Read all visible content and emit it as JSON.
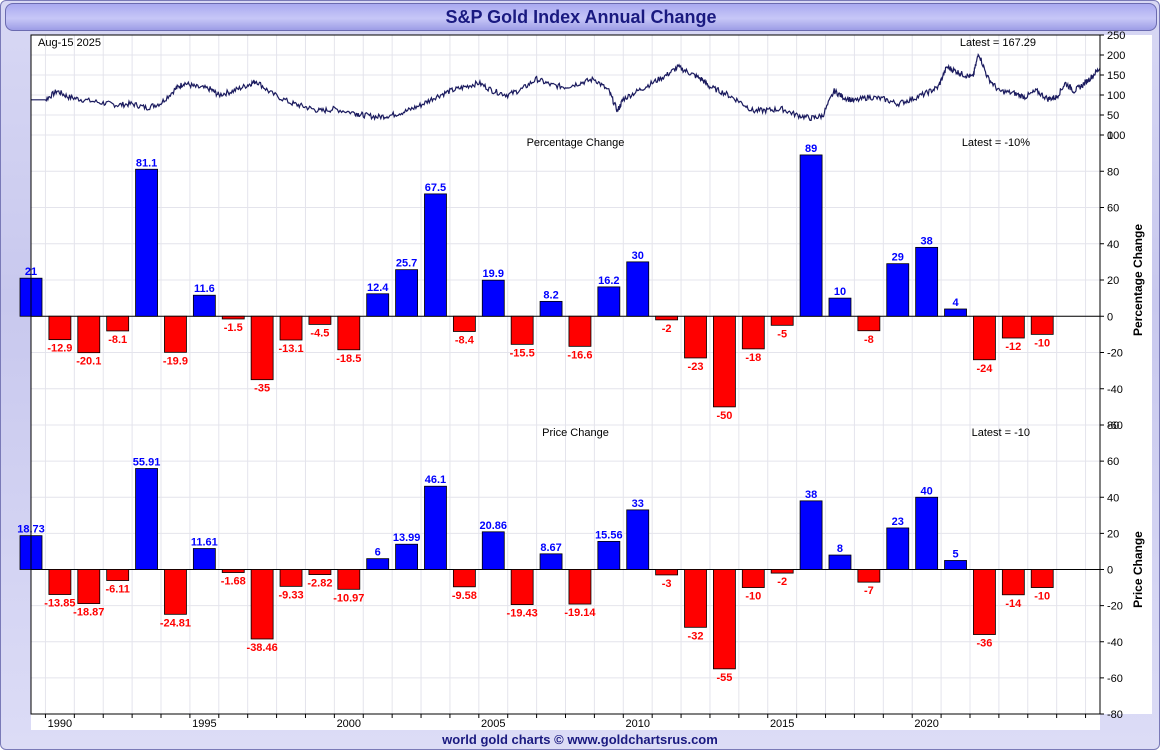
{
  "title": "S&P Gold Index Annual Change",
  "footer": "world gold charts © www.goldchartsrus.com",
  "colors": {
    "positive": "#0000ff",
    "negative": "#ff0000",
    "line": "#1a1a5e",
    "title_text": "#1a1a80"
  },
  "chart_data": [
    {
      "type": "line",
      "date_label": "Aug-15  2025",
      "latest_label": "Latest = 167.29",
      "ylim": [
        0,
        250
      ],
      "yticks": [
        "0",
        "50",
        "100",
        "150",
        "200",
        "250"
      ],
      "points": [
        [
          1988.5,
          88
        ],
        [
          1989.0,
          88
        ],
        [
          1989.4,
          110
        ],
        [
          1989.8,
          95
        ],
        [
          1990.3,
          88
        ],
        [
          1991.0,
          80
        ],
        [
          1991.5,
          75
        ],
        [
          1992.0,
          78
        ],
        [
          1992.5,
          68
        ],
        [
          1993.0,
          80
        ],
        [
          1993.5,
          115
        ],
        [
          1993.8,
          130
        ],
        [
          1994.2,
          120
        ],
        [
          1994.7,
          115
        ],
        [
          1995.0,
          100
        ],
        [
          1995.5,
          110
        ],
        [
          1996.0,
          125
        ],
        [
          1996.3,
          135
        ],
        [
          1996.8,
          105
        ],
        [
          1997.5,
          80
        ],
        [
          1998.0,
          70
        ],
        [
          1998.5,
          60
        ],
        [
          1999.0,
          65
        ],
        [
          1999.7,
          55
        ],
        [
          2000.0,
          50
        ],
        [
          2000.5,
          45
        ],
        [
          2001.0,
          50
        ],
        [
          2001.5,
          60
        ],
        [
          2002.0,
          75
        ],
        [
          2002.5,
          95
        ],
        [
          2003.0,
          110
        ],
        [
          2003.5,
          120
        ],
        [
          2004.0,
          130
        ],
        [
          2004.5,
          110
        ],
        [
          2005.0,
          100
        ],
        [
          2005.5,
          115
        ],
        [
          2006.0,
          140
        ],
        [
          2006.5,
          125
        ],
        [
          2007.0,
          120
        ],
        [
          2007.5,
          130
        ],
        [
          2008.0,
          140
        ],
        [
          2008.5,
          110
        ],
        [
          2008.8,
          60
        ],
        [
          2009.0,
          90
        ],
        [
          2009.5,
          110
        ],
        [
          2010.0,
          130
        ],
        [
          2010.5,
          150
        ],
        [
          2010.9,
          170
        ],
        [
          2011.3,
          155
        ],
        [
          2011.7,
          140
        ],
        [
          2012.0,
          120
        ],
        [
          2012.5,
          105
        ],
        [
          2013.0,
          85
        ],
        [
          2013.5,
          60
        ],
        [
          2014.0,
          62
        ],
        [
          2014.5,
          65
        ],
        [
          2015.0,
          50
        ],
        [
          2015.5,
          42
        ],
        [
          2015.9,
          48
        ],
        [
          2016.3,
          110
        ],
        [
          2016.6,
          95
        ],
        [
          2017.0,
          85
        ],
        [
          2017.5,
          95
        ],
        [
          2018.0,
          90
        ],
        [
          2018.5,
          78
        ],
        [
          2019.0,
          90
        ],
        [
          2019.5,
          105
        ],
        [
          2019.9,
          120
        ],
        [
          2020.2,
          170
        ],
        [
          2020.5,
          160
        ],
        [
          2020.8,
          150
        ],
        [
          2021.1,
          145
        ],
        [
          2021.3,
          205
        ],
        [
          2021.6,
          145
        ],
        [
          2022.0,
          110
        ],
        [
          2022.5,
          105
        ],
        [
          2022.9,
          95
        ],
        [
          2023.3,
          110
        ],
        [
          2023.7,
          90
        ],
        [
          2024.0,
          95
        ],
        [
          2024.3,
          130
        ],
        [
          2024.6,
          110
        ],
        [
          2024.9,
          125
        ],
        [
          2025.2,
          145
        ],
        [
          2025.5,
          167.29
        ]
      ]
    },
    {
      "type": "bar",
      "subtitle": "Percentage Change",
      "latest_label": "Latest = -10%",
      "ylabel": "Percentage Change",
      "ylim": [
        -60,
        100
      ],
      "yticks": [
        "-60",
        "-40",
        "-20",
        "0",
        "20",
        "40",
        "60",
        "80",
        "100"
      ],
      "categories": [
        1989,
        1990,
        1991,
        1992,
        1993,
        1994,
        1995,
        1996,
        1997,
        1998,
        1999,
        2000,
        2001,
        2002,
        2003,
        2004,
        2005,
        2006,
        2007,
        2008,
        2009,
        2010,
        2011,
        2012,
        2013,
        2014,
        2015,
        2016,
        2017,
        2018,
        2019,
        2020,
        2021,
        2022,
        2023,
        2024
      ],
      "values": [
        21,
        -12.9,
        -20.1,
        -8.1,
        81.1,
        -19.9,
        11.6,
        -1.5,
        -35,
        -13.1,
        -4.5,
        -18.5,
        12.4,
        25.7,
        67.5,
        -8.4,
        19.9,
        -15.5,
        8.2,
        -16.6,
        16.2,
        30,
        -2,
        -23,
        -50,
        -18,
        -5,
        89,
        10,
        -8,
        29,
        38,
        4,
        -24,
        -12,
        -10
      ],
      "labels": [
        "21",
        "-12.9",
        "-20.1",
        "-8.1",
        "81.1",
        "-19.9",
        "11.6",
        "-1.5",
        "-35",
        "-13.1",
        "-4.5",
        "-18.5",
        "12.4",
        "25.7",
        "67.5",
        "-8.4",
        "19.9",
        "-15.5",
        "8.2",
        "-16.6",
        "16.2",
        "30",
        "-2",
        "-23",
        "-50",
        "-18",
        "-5",
        "89",
        "10",
        "-8",
        "29",
        "38",
        "4",
        "-24",
        "-12",
        "-10"
      ]
    },
    {
      "type": "bar",
      "subtitle": "Price Change",
      "latest_label": "Latest = -10",
      "ylabel": "Price Change",
      "ylim": [
        -80,
        80
      ],
      "yticks": [
        "-80",
        "-60",
        "-40",
        "-20",
        "0",
        "20",
        "40",
        "60",
        "80"
      ],
      "xticks": [
        "1990",
        "1995",
        "2000",
        "2005",
        "2010",
        "2015",
        "2020"
      ],
      "categories": [
        1989,
        1990,
        1991,
        1992,
        1993,
        1994,
        1995,
        1996,
        1997,
        1998,
        1999,
        2000,
        2001,
        2002,
        2003,
        2004,
        2005,
        2006,
        2007,
        2008,
        2009,
        2010,
        2011,
        2012,
        2013,
        2014,
        2015,
        2016,
        2017,
        2018,
        2019,
        2020,
        2021,
        2022,
        2023,
        2024
      ],
      "values": [
        18.73,
        -13.85,
        -18.87,
        -6.11,
        55.91,
        -24.81,
        11.61,
        -1.68,
        -38.46,
        -9.33,
        -2.82,
        -10.97,
        6,
        13.99,
        46.1,
        -9.58,
        20.86,
        -19.43,
        8.67,
        -19.14,
        15.56,
        33,
        -3,
        -32,
        -55,
        -10,
        -2,
        38,
        8,
        -7,
        23,
        40,
        5,
        -36,
        -14,
        -10
      ],
      "labels": [
        "18.73",
        "-13.85",
        "-18.87",
        "-6.11",
        "55.91",
        "-24.81",
        "11.61",
        "-1.68",
        "-38.46",
        "-9.33",
        "-2.82",
        "-10.97",
        "6",
        "13.99",
        "46.1",
        "-9.58",
        "20.86",
        "-19.43",
        "8.67",
        "-19.14",
        "15.56",
        "33",
        "-3",
        "-32",
        "-55",
        "-10",
        "-2",
        "38",
        "8",
        "-7",
        "23",
        "40",
        "5",
        "-36",
        "-14",
        "-10"
      ]
    }
  ]
}
